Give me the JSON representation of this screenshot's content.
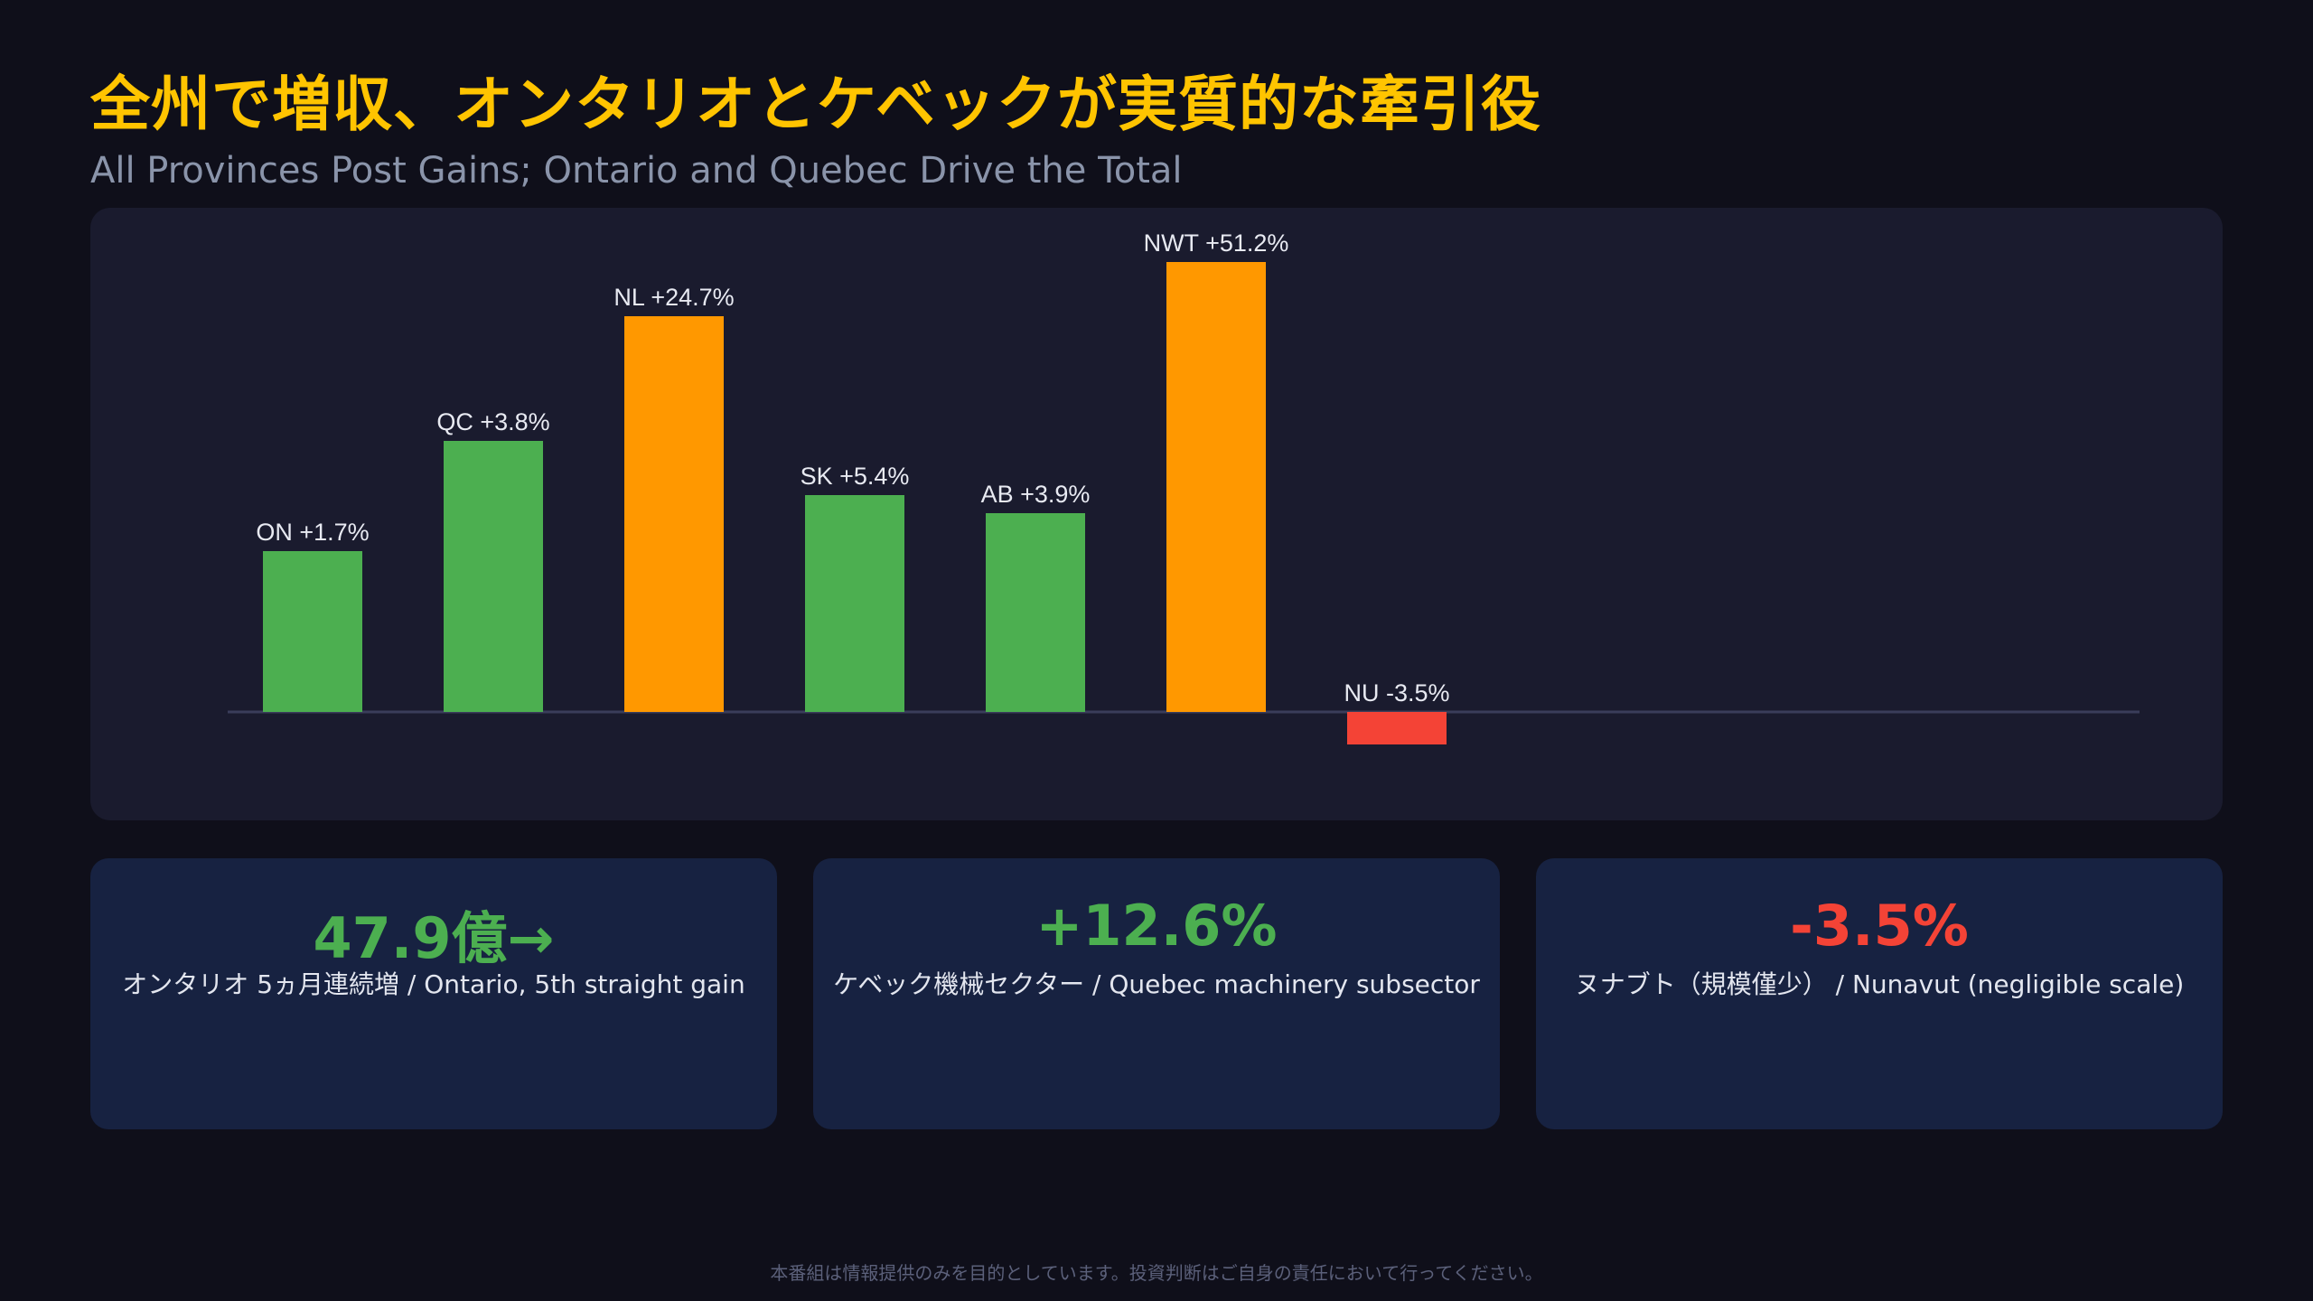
{
  "header": {
    "title": "全州で増収、オンタリオとケベックが実質的な牽引役",
    "subtitle": "All Provinces Post Gains; Ontario and Quebec Drive the Total"
  },
  "colors": {
    "background": "#0f0f1a",
    "panel": "#1a1b2e",
    "card": "#172241",
    "title": "#ffc400",
    "positive": "#4caf50",
    "highlight": "#ff9800",
    "negative": "#f44336",
    "baseline": "#3a3d5a"
  },
  "chart_data": {
    "type": "bar",
    "categories": [
      "ON",
      "QC",
      "NL",
      "SK",
      "AB",
      "NWT",
      "NU"
    ],
    "values": [
      1.7,
      3.8,
      24.7,
      5.4,
      3.9,
      51.2,
      -3.5
    ],
    "data_labels": [
      "ON +1.7%",
      "QC +3.8%",
      "NL +24.7%",
      "SK +5.4%",
      "AB +3.9%",
      "NWT +51.2%",
      "NU -3.5%"
    ],
    "bar_colors": [
      "#4caf50",
      "#4caf50",
      "#ff9800",
      "#4caf50",
      "#4caf50",
      "#ff9800",
      "#f44336"
    ],
    "heights_exaggerated": false,
    "display_heights": [
      178,
      300,
      438,
      240,
      220,
      498,
      -36
    ],
    "title": "",
    "xlabel": "",
    "ylabel": "",
    "grid": false,
    "legend": "none"
  },
  "cards": [
    {
      "value": "47.9億→",
      "caption": "オンタリオ 5ヵ月連続増 / Ontario, 5th straight gain",
      "color": "#4caf50"
    },
    {
      "value": "+12.6%",
      "caption": "ケベック機械セクター / Quebec machinery subsector",
      "color": "#4caf50"
    },
    {
      "value": "-3.5%",
      "caption": "ヌナブト（規模僅少） / Nunavut (negligible scale)",
      "color": "#f44336"
    }
  ],
  "footer": {
    "disclaimer": "本番組は情報提供のみを目的としています。投資判断はご自身の責任において行ってください。"
  }
}
